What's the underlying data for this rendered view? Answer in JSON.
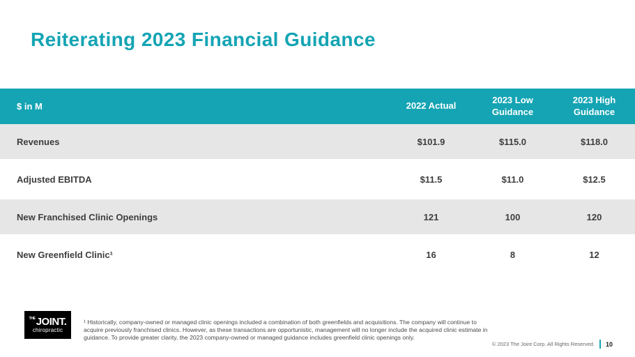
{
  "slide": {
    "title": "Reiterating 2023 Financial Guidance",
    "page_number": "10",
    "copyright": "© 2023 The Joint Corp. All Rights Reserved.",
    "footnote": "¹ Historically, company-owned or managed clinic openings included a combination of both greenfields and acquisitions. The company will continue to acquire previously franchised clinics. However, as these transactions are opportunistic, management will no longer include the acquired clinic estimate in guidance. To provide greater clarity, the 2023 company-owned or managed guidance includes greenfield clinic openings only."
  },
  "logo": {
    "the": "THE",
    "joint": "JOINT.",
    "chiropractic": "chiropractic"
  },
  "colors": {
    "teal": "#14a4b4",
    "row_gray": "#e7e6e6",
    "header_text": "#ffffff",
    "body_text": "#3d3d3d"
  },
  "chart_data": {
    "type": "table",
    "title": "Reiterating 2023 Financial Guidance",
    "unit_label": "$ in M",
    "columns": [
      "2022 Actual",
      "2023 Low Guidance",
      "2023 High Guidance"
    ],
    "rows": [
      {
        "label": "Revenues",
        "values": [
          "$101.9",
          "$115.0",
          "$118.0"
        ]
      },
      {
        "label": "Adjusted EBITDA",
        "values": [
          "$11.5",
          "$11.0",
          "$12.5"
        ]
      },
      {
        "label": "New Franchised Clinic Openings",
        "values": [
          "121",
          "100",
          "120"
        ]
      },
      {
        "label": "New Greenfield Clinic¹",
        "values": [
          "16",
          "8",
          "12"
        ]
      }
    ]
  }
}
